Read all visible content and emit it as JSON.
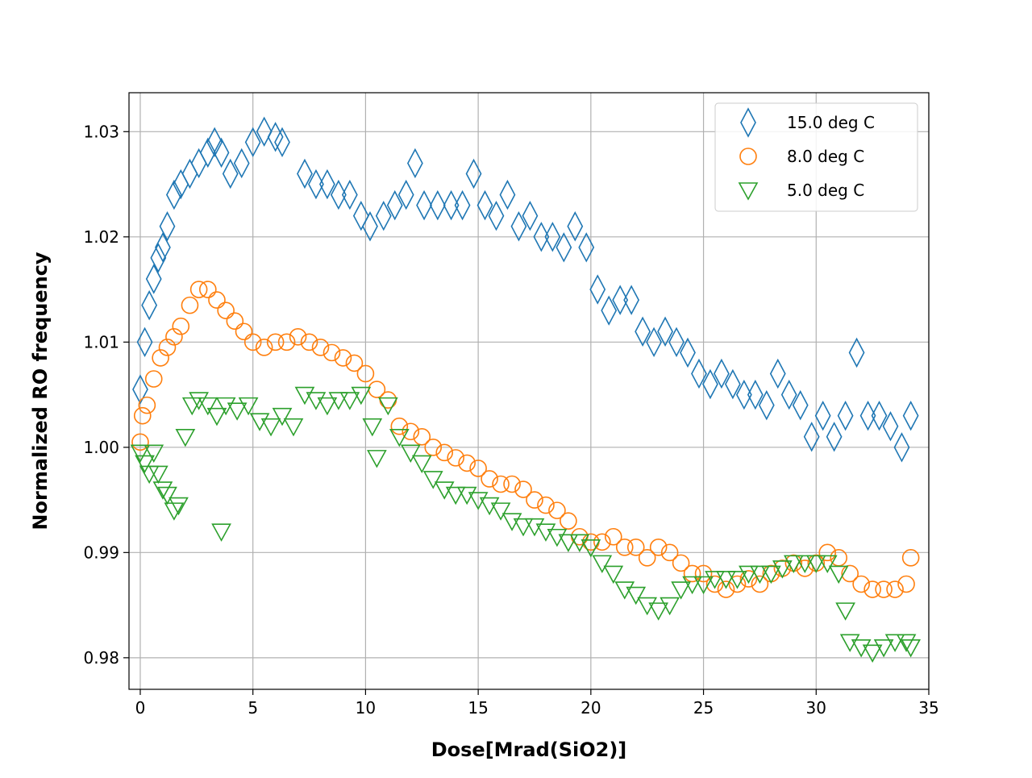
{
  "chart_data": {
    "type": "scatter",
    "title": "",
    "xlabel": "Dose[Mrad(SiO2)]",
    "ylabel": "Normalized RO frequency",
    "xlim": [
      -0.5,
      35
    ],
    "ylim": [
      0.977,
      1.0337
    ],
    "xticks": [
      0,
      5,
      10,
      15,
      20,
      25,
      30,
      35
    ],
    "xtick_labels": [
      "0",
      "5",
      "10",
      "15",
      "20",
      "25",
      "30",
      "35"
    ],
    "yticks": [
      0.98,
      0.99,
      1.0,
      1.01,
      1.02,
      1.03
    ],
    "ytick_labels": [
      "0.98",
      "0.99",
      "1.00",
      "1.01",
      "1.02",
      "1.03"
    ],
    "grid": true,
    "legend_position": "top-right",
    "series": [
      {
        "name": "15.0 deg C",
        "marker": "thin_diamond",
        "color": "#1f77b4",
        "points": [
          [
            0,
            1.0055
          ],
          [
            0.2,
            1.01
          ],
          [
            0.4,
            1.0135
          ],
          [
            0.6,
            1.016
          ],
          [
            0.8,
            1.018
          ],
          [
            1.0,
            1.019
          ],
          [
            1.2,
            1.021
          ],
          [
            1.5,
            1.024
          ],
          [
            1.8,
            1.025
          ],
          [
            2.2,
            1.026
          ],
          [
            2.6,
            1.027
          ],
          [
            3.0,
            1.028
          ],
          [
            3.3,
            1.029
          ],
          [
            3.6,
            1.028
          ],
          [
            4.0,
            1.026
          ],
          [
            4.5,
            1.027
          ],
          [
            5.0,
            1.029
          ],
          [
            5.5,
            1.03
          ],
          [
            6.0,
            1.0295
          ],
          [
            6.3,
            1.029
          ],
          [
            7.3,
            1.026
          ],
          [
            7.8,
            1.025
          ],
          [
            8.3,
            1.025
          ],
          [
            8.8,
            1.024
          ],
          [
            9.3,
            1.024
          ],
          [
            9.8,
            1.022
          ],
          [
            10.2,
            1.021
          ],
          [
            10.8,
            1.022
          ],
          [
            11.3,
            1.023
          ],
          [
            11.8,
            1.024
          ],
          [
            12.2,
            1.027
          ],
          [
            12.6,
            1.023
          ],
          [
            13.2,
            1.023
          ],
          [
            13.8,
            1.023
          ],
          [
            14.3,
            1.023
          ],
          [
            14.8,
            1.026
          ],
          [
            15.3,
            1.023
          ],
          [
            15.8,
            1.022
          ],
          [
            16.3,
            1.024
          ],
          [
            16.8,
            1.021
          ],
          [
            17.3,
            1.022
          ],
          [
            17.8,
            1.02
          ],
          [
            18.3,
            1.02
          ],
          [
            18.8,
            1.019
          ],
          [
            19.3,
            1.021
          ],
          [
            19.8,
            1.019
          ],
          [
            20.3,
            1.015
          ],
          [
            20.8,
            1.013
          ],
          [
            21.3,
            1.014
          ],
          [
            21.8,
            1.014
          ],
          [
            22.3,
            1.011
          ],
          [
            22.8,
            1.01
          ],
          [
            23.3,
            1.011
          ],
          [
            23.8,
            1.01
          ],
          [
            24.3,
            1.009
          ],
          [
            24.8,
            1.007
          ],
          [
            25.3,
            1.006
          ],
          [
            25.8,
            1.007
          ],
          [
            26.3,
            1.006
          ],
          [
            26.8,
            1.005
          ],
          [
            27.3,
            1.005
          ],
          [
            27.8,
            1.004
          ],
          [
            28.3,
            1.007
          ],
          [
            28.8,
            1.005
          ],
          [
            29.3,
            1.004
          ],
          [
            29.8,
            1.001
          ],
          [
            30.3,
            1.003
          ],
          [
            30.8,
            1.001
          ],
          [
            31.3,
            1.003
          ],
          [
            31.8,
            1.009
          ],
          [
            32.3,
            1.003
          ],
          [
            32.8,
            1.003
          ],
          [
            33.3,
            1.002
          ],
          [
            33.8,
            1.0
          ],
          [
            34.2,
            1.003
          ]
        ]
      },
      {
        "name": "8.0 deg C",
        "marker": "circle",
        "color": "#ff7f0e",
        "points": [
          [
            0,
            1.0005
          ],
          [
            0.1,
            1.003
          ],
          [
            0.3,
            1.004
          ],
          [
            0.6,
            1.0065
          ],
          [
            0.9,
            1.0085
          ],
          [
            1.2,
            1.0095
          ],
          [
            1.5,
            1.0105
          ],
          [
            1.8,
            1.0115
          ],
          [
            2.2,
            1.0135
          ],
          [
            2.6,
            1.015
          ],
          [
            3.0,
            1.015
          ],
          [
            3.4,
            1.014
          ],
          [
            3.8,
            1.013
          ],
          [
            4.2,
            1.012
          ],
          [
            4.6,
            1.011
          ],
          [
            5.0,
            1.01
          ],
          [
            5.5,
            1.0095
          ],
          [
            6.0,
            1.01
          ],
          [
            6.5,
            1.01
          ],
          [
            7.0,
            1.0105
          ],
          [
            7.5,
            1.01
          ],
          [
            8.0,
            1.0095
          ],
          [
            8.5,
            1.009
          ],
          [
            9.0,
            1.0085
          ],
          [
            9.5,
            1.008
          ],
          [
            10.0,
            1.007
          ],
          [
            10.5,
            1.0055
          ],
          [
            11.0,
            1.0045
          ],
          [
            11.5,
            1.002
          ],
          [
            12.0,
            1.0015
          ],
          [
            12.5,
            1.001
          ],
          [
            13.0,
            1.0
          ],
          [
            13.5,
            0.9995
          ],
          [
            14.0,
            0.999
          ],
          [
            14.5,
            0.9985
          ],
          [
            15.0,
            0.998
          ],
          [
            15.5,
            0.997
          ],
          [
            16.0,
            0.9965
          ],
          [
            16.5,
            0.9965
          ],
          [
            17.0,
            0.996
          ],
          [
            17.5,
            0.995
          ],
          [
            18.0,
            0.9945
          ],
          [
            18.5,
            0.994
          ],
          [
            19.0,
            0.993
          ],
          [
            19.5,
            0.9915
          ],
          [
            20.0,
            0.991
          ],
          [
            20.5,
            0.991
          ],
          [
            21.0,
            0.9915
          ],
          [
            21.5,
            0.9905
          ],
          [
            22.0,
            0.9905
          ],
          [
            22.5,
            0.9895
          ],
          [
            23.0,
            0.9905
          ],
          [
            23.5,
            0.99
          ],
          [
            24.0,
            0.989
          ],
          [
            24.5,
            0.988
          ],
          [
            25.0,
            0.988
          ],
          [
            25.5,
            0.987
          ],
          [
            26.0,
            0.9865
          ],
          [
            26.5,
            0.987
          ],
          [
            27.0,
            0.9875
          ],
          [
            27.5,
            0.987
          ],
          [
            28.0,
            0.988
          ],
          [
            28.5,
            0.9885
          ],
          [
            29.0,
            0.989
          ],
          [
            29.5,
            0.9885
          ],
          [
            30.0,
            0.989
          ],
          [
            30.5,
            0.99
          ],
          [
            31.0,
            0.9895
          ],
          [
            31.5,
            0.988
          ],
          [
            32.0,
            0.987
          ],
          [
            32.5,
            0.9865
          ],
          [
            33.0,
            0.9865
          ],
          [
            33.5,
            0.9865
          ],
          [
            34.0,
            0.987
          ],
          [
            34.2,
            0.9895
          ]
        ]
      },
      {
        "name": "5.0 deg C",
        "marker": "triangle_down",
        "color": "#2ca02c",
        "points": [
          [
            0,
            0.9995
          ],
          [
            0.2,
            0.9985
          ],
          [
            0.4,
            0.9975
          ],
          [
            0.6,
            0.9995
          ],
          [
            0.8,
            0.9975
          ],
          [
            1.0,
            0.996
          ],
          [
            1.2,
            0.9955
          ],
          [
            1.5,
            0.994
          ],
          [
            1.7,
            0.9945
          ],
          [
            2.0,
            1.001
          ],
          [
            2.3,
            1.004
          ],
          [
            2.6,
            1.0045
          ],
          [
            3.0,
            1.004
          ],
          [
            3.4,
            1.003
          ],
          [
            3.6,
            0.992
          ],
          [
            3.8,
            1.004
          ],
          [
            4.3,
            1.0035
          ],
          [
            4.8,
            1.004
          ],
          [
            5.3,
            1.0025
          ],
          [
            5.8,
            1.002
          ],
          [
            6.3,
            1.003
          ],
          [
            6.8,
            1.002
          ],
          [
            7.3,
            1.005
          ],
          [
            7.8,
            1.0045
          ],
          [
            8.3,
            1.004
          ],
          [
            8.8,
            1.0045
          ],
          [
            9.3,
            1.0045
          ],
          [
            9.8,
            1.005
          ],
          [
            10.3,
            1.002
          ],
          [
            10.5,
            0.999
          ],
          [
            11.0,
            1.004
          ],
          [
            11.5,
            1.001
          ],
          [
            12.0,
            0.9995
          ],
          [
            12.5,
            0.9985
          ],
          [
            13.0,
            0.997
          ],
          [
            13.5,
            0.996
          ],
          [
            14.0,
            0.9955
          ],
          [
            14.5,
            0.9955
          ],
          [
            15.0,
            0.995
          ],
          [
            15.5,
            0.9945
          ],
          [
            16.0,
            0.994
          ],
          [
            16.5,
            0.993
          ],
          [
            17.0,
            0.9925
          ],
          [
            17.5,
            0.9925
          ],
          [
            18.0,
            0.992
          ],
          [
            18.5,
            0.9915
          ],
          [
            19.0,
            0.991
          ],
          [
            19.5,
            0.991
          ],
          [
            20.0,
            0.9905
          ],
          [
            20.5,
            0.989
          ],
          [
            21.0,
            0.988
          ],
          [
            21.5,
            0.9865
          ],
          [
            22.0,
            0.986
          ],
          [
            22.5,
            0.985
          ],
          [
            23.0,
            0.9845
          ],
          [
            23.5,
            0.985
          ],
          [
            24.0,
            0.9865
          ],
          [
            24.5,
            0.987
          ],
          [
            25.0,
            0.987
          ],
          [
            25.5,
            0.9875
          ],
          [
            26.0,
            0.9875
          ],
          [
            26.5,
            0.9875
          ],
          [
            27.0,
            0.988
          ],
          [
            27.5,
            0.988
          ],
          [
            28.0,
            0.988
          ],
          [
            28.5,
            0.9885
          ],
          [
            29.0,
            0.989
          ],
          [
            29.5,
            0.989
          ],
          [
            30.0,
            0.989
          ],
          [
            30.5,
            0.989
          ],
          [
            31.0,
            0.988
          ],
          [
            31.3,
            0.9845
          ],
          [
            31.5,
            0.9815
          ],
          [
            32.0,
            0.981
          ],
          [
            32.5,
            0.9805
          ],
          [
            33.0,
            0.981
          ],
          [
            33.5,
            0.9815
          ],
          [
            34.0,
            0.9815
          ],
          [
            34.2,
            0.981
          ]
        ]
      }
    ]
  }
}
